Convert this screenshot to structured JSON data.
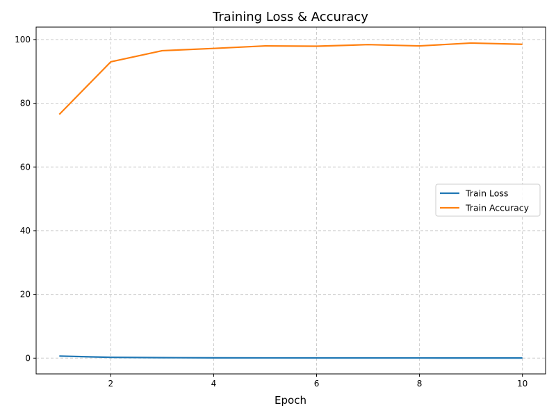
{
  "chart_data": {
    "type": "line",
    "title": "Training Loss & Accuracy",
    "xlabel": "Epoch",
    "ylabel": "",
    "x": [
      1,
      2,
      3,
      4,
      5,
      6,
      7,
      8,
      9,
      10
    ],
    "xlim": [
      0.55,
      10.45
    ],
    "ylim": [
      -4.95,
      103.9
    ],
    "xticks": [
      2,
      4,
      6,
      8,
      10
    ],
    "yticks": [
      0,
      20,
      40,
      60,
      80,
      100
    ],
    "grid": true,
    "legend_position": "center-right",
    "series": [
      {
        "name": "Train Loss",
        "color": "#1f77b4",
        "values": [
          0.65,
          0.25,
          0.15,
          0.1,
          0.08,
          0.07,
          0.06,
          0.05,
          0.04,
          0.04
        ]
      },
      {
        "name": "Train Accuracy",
        "color": "#ff7f0e",
        "values": [
          76.5,
          93.0,
          96.5,
          97.2,
          98.0,
          97.9,
          98.4,
          98.0,
          98.9,
          98.5
        ]
      }
    ]
  }
}
